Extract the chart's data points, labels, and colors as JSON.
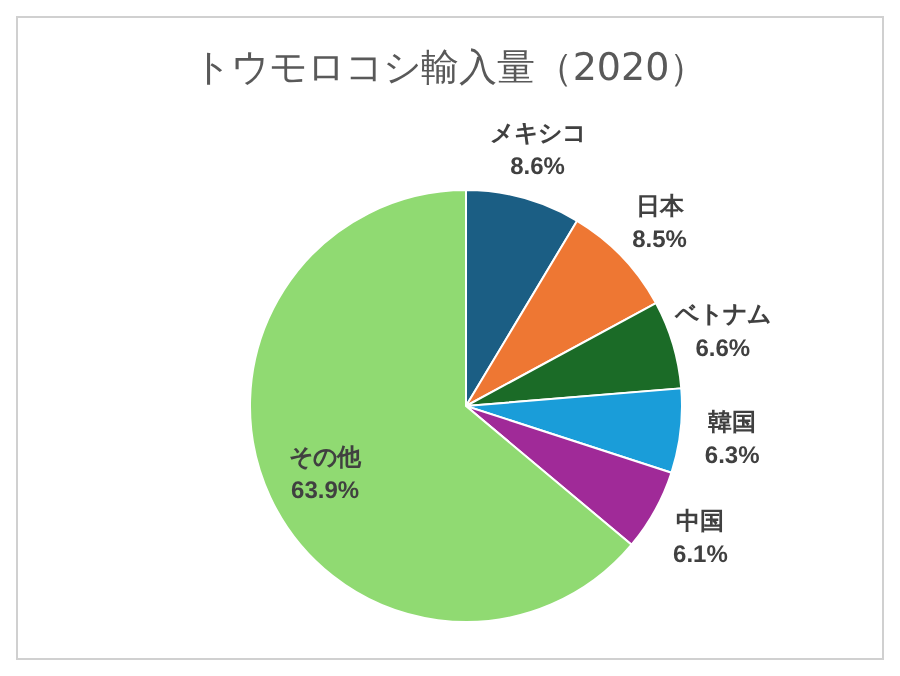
{
  "chart_data": {
    "type": "pie",
    "title": "トウモロコシ輸入量（2020）",
    "categories": [
      "メキシコ",
      "日本",
      "ベトナム",
      "韓国",
      "中国",
      "その他"
    ],
    "values": [
      8.6,
      8.5,
      6.6,
      6.3,
      6.1,
      63.9
    ],
    "colors": [
      "#1b5e84",
      "#ee7733",
      "#1b6b27",
      "#1a9dd9",
      "#a02a98",
      "#90da72"
    ],
    "value_labels": [
      "8.6%",
      "8.5%",
      "6.6%",
      "6.3%",
      "6.1%",
      "63.9%"
    ]
  }
}
